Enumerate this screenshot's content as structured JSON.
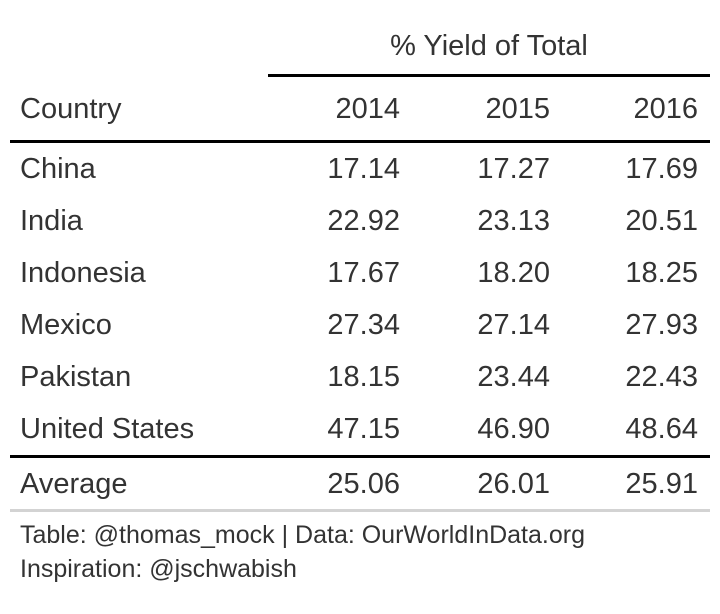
{
  "chart_data": {
    "type": "table",
    "spanner": "% Yield of Total",
    "columns": [
      "Country",
      "2014",
      "2015",
      "2016"
    ],
    "rows": [
      {
        "country": "China",
        "v2014": "17.14",
        "v2015": "17.27",
        "v2016": "17.69"
      },
      {
        "country": "India",
        "v2014": "22.92",
        "v2015": "23.13",
        "v2016": "20.51"
      },
      {
        "country": "Indonesia",
        "v2014": "17.67",
        "v2015": "18.20",
        "v2016": "18.25"
      },
      {
        "country": "Mexico",
        "v2014": "27.34",
        "v2015": "27.14",
        "v2016": "27.93"
      },
      {
        "country": "Pakistan",
        "v2014": "18.15",
        "v2015": "23.44",
        "v2016": "22.43"
      },
      {
        "country": "United States",
        "v2014": "47.15",
        "v2015": "46.90",
        "v2016": "48.64"
      }
    ],
    "summary": {
      "country": "Average",
      "v2014": "25.06",
      "v2015": "26.01",
      "v2016": "25.91"
    },
    "source_notes": [
      "Table: @thomas_mock | Data: OurWorldInData.org",
      "Inspiration: @jschwabish"
    ]
  }
}
